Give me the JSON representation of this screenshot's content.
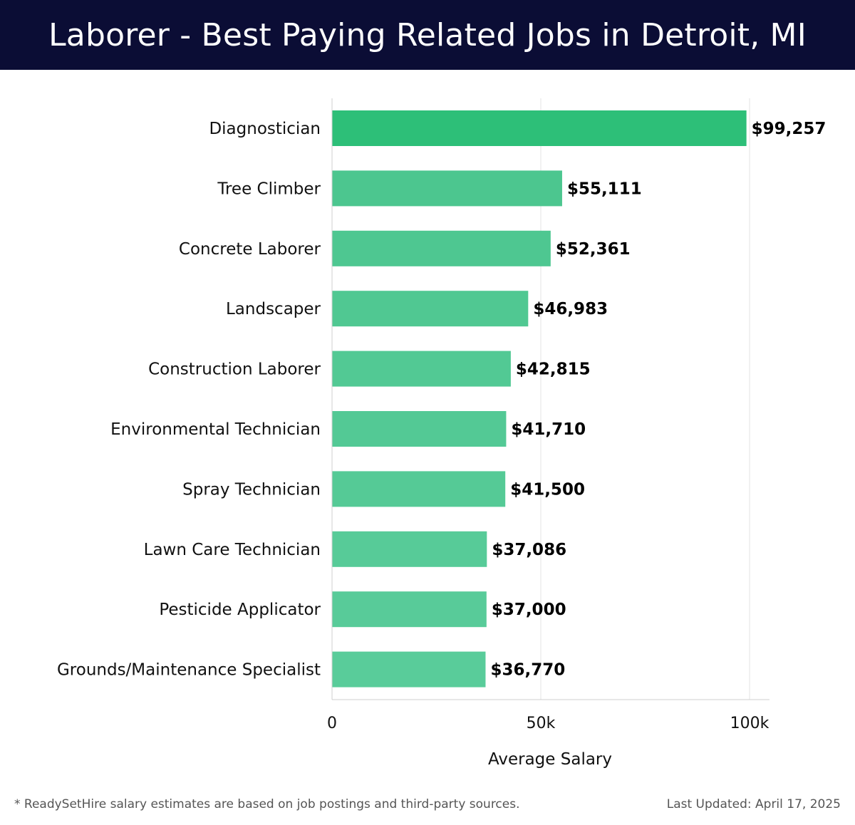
{
  "header": {
    "title": "Laborer - Best Paying Related Jobs in Detroit, MI"
  },
  "chart_data": {
    "type": "bar",
    "orientation": "horizontal",
    "title": "Laborer - Best Paying Related Jobs in Detroit, MI",
    "xlabel": "Average Salary",
    "ylabel": "",
    "xlim": [
      0,
      104000
    ],
    "xticks": [
      0,
      50000,
      100000
    ],
    "xtick_labels": [
      "0",
      "50k",
      "100k"
    ],
    "grid": true,
    "categories": [
      "Diagnostician",
      "Tree Climber",
      "Concrete Laborer",
      "Landscaper",
      "Construction Laborer",
      "Environmental Technician",
      "Spray Technician",
      "Lawn Care Technician",
      "Pesticide Applicator",
      "Grounds/Maintenance Specialist"
    ],
    "values": [
      99257,
      55111,
      52361,
      46983,
      42815,
      41710,
      41500,
      37086,
      37000,
      36770
    ],
    "value_labels": [
      "$99,257",
      "$55,111",
      "$52,361",
      "$46,983",
      "$42,815",
      "$41,710",
      "$41,500",
      "$37,086",
      "$37,000",
      "$36,770"
    ],
    "colors": {
      "highlight": "#2dbf78",
      "bar_colors": [
        "#2dbf78",
        "#4cc68f",
        "#4ec791",
        "#50c892",
        "#52c994",
        "#53c995",
        "#55ca96",
        "#57cb98",
        "#58cb99",
        "#59cc9a"
      ],
      "grid": "#e3e3e3",
      "axis": "#cfcfcf"
    }
  },
  "footer": {
    "note": "* ReadySetHire salary estimates are based on job postings and third-party sources.",
    "updated": "Last Updated: April 17, 2025"
  }
}
